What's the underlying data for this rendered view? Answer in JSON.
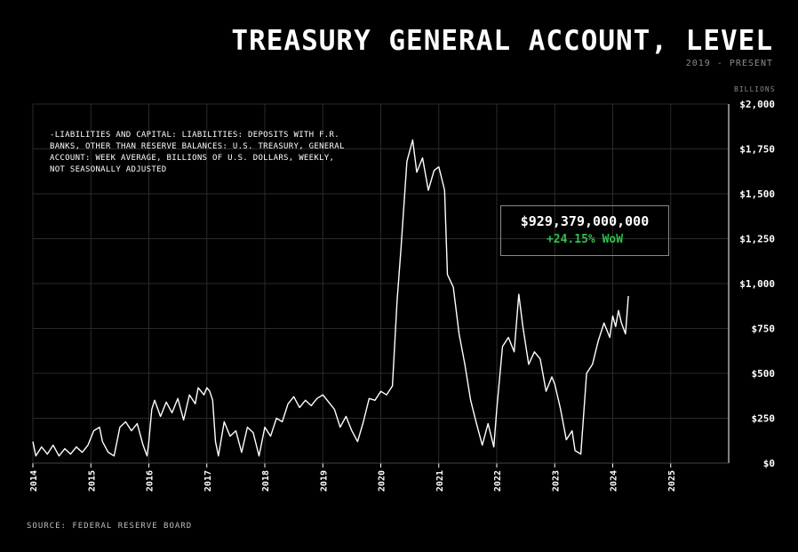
{
  "title": "TREASURY GENERAL ACCOUNT, LEVEL",
  "subtitle": "2019 - PRESENT",
  "unit_label": "BILLIONS",
  "series_description": "-LIABILITIES AND CAPITAL: LIABILITIES: DEPOSITS WITH F.R. BANKS, OTHER THAN RESERVE BALANCES: U.S. TREASURY, GENERAL ACCOUNT: WEEK AVERAGE, BILLIONS OF U.S. DOLLARS, WEEKLY, NOT SEASONALLY ADJUSTED",
  "callout": {
    "value": "$929,379,000,000",
    "change": "+24.15% WoW",
    "change_color": "#2fbf4f"
  },
  "source": "SOURCE: FEDERAL RESERVE BOARD",
  "colors": {
    "background": "#000000",
    "line": "#ffffff",
    "grid": "#2a2a2a",
    "muted": "#8a8a8a"
  },
  "chart_data": {
    "type": "line",
    "title": "TREASURY GENERAL ACCOUNT, LEVEL",
    "ylabel": "BILLIONS",
    "xlim": [
      2014.0,
      2026.0
    ],
    "ylim": [
      0,
      2000
    ],
    "grid": true,
    "legend": "none",
    "x_ticks": [
      2014,
      2015,
      2016,
      2017,
      2018,
      2019,
      2020,
      2021,
      2022,
      2023,
      2024,
      2025
    ],
    "x_tick_labels": [
      "2014",
      "2015",
      "2016",
      "2017",
      "2018",
      "2019",
      "2020",
      "2021",
      "2022",
      "2023",
      "2024",
      "2025"
    ],
    "y_ticks": [
      0,
      250,
      500,
      750,
      1000,
      1250,
      1500,
      1750,
      2000
    ],
    "y_tick_labels": [
      "$0",
      "$250",
      "$500",
      "$750",
      "$1,000",
      "$1,250",
      "$1,500",
      "$1,750",
      "$2,000"
    ],
    "series": [
      {
        "values": [
          [
            2014.0,
            120
          ],
          [
            2014.05,
            40
          ],
          [
            2014.15,
            90
          ],
          [
            2014.25,
            50
          ],
          [
            2014.35,
            100
          ],
          [
            2014.45,
            40
          ],
          [
            2014.55,
            80
          ],
          [
            2014.65,
            50
          ],
          [
            2014.75,
            90
          ],
          [
            2014.85,
            60
          ],
          [
            2014.95,
            100
          ],
          [
            2015.05,
            180
          ],
          [
            2015.15,
            200
          ],
          [
            2015.2,
            120
          ],
          [
            2015.3,
            60
          ],
          [
            2015.4,
            40
          ],
          [
            2015.5,
            200
          ],
          [
            2015.6,
            230
          ],
          [
            2015.7,
            180
          ],
          [
            2015.8,
            220
          ],
          [
            2015.9,
            100
          ],
          [
            2015.97,
            40
          ],
          [
            2016.0,
            120
          ],
          [
            2016.05,
            300
          ],
          [
            2016.1,
            350
          ],
          [
            2016.2,
            260
          ],
          [
            2016.3,
            340
          ],
          [
            2016.4,
            280
          ],
          [
            2016.5,
            360
          ],
          [
            2016.6,
            240
          ],
          [
            2016.7,
            380
          ],
          [
            2016.8,
            330
          ],
          [
            2016.85,
            420
          ],
          [
            2016.95,
            380
          ],
          [
            2017.0,
            420
          ],
          [
            2017.05,
            400
          ],
          [
            2017.1,
            350
          ],
          [
            2017.15,
            120
          ],
          [
            2017.2,
            40
          ],
          [
            2017.3,
            230
          ],
          [
            2017.4,
            150
          ],
          [
            2017.5,
            180
          ],
          [
            2017.6,
            60
          ],
          [
            2017.7,
            200
          ],
          [
            2017.8,
            170
          ],
          [
            2017.9,
            40
          ],
          [
            2018.0,
            200
          ],
          [
            2018.1,
            150
          ],
          [
            2018.2,
            250
          ],
          [
            2018.3,
            230
          ],
          [
            2018.4,
            330
          ],
          [
            2018.5,
            370
          ],
          [
            2018.6,
            310
          ],
          [
            2018.7,
            350
          ],
          [
            2018.8,
            320
          ],
          [
            2018.9,
            360
          ],
          [
            2019.0,
            380
          ],
          [
            2019.1,
            340
          ],
          [
            2019.2,
            300
          ],
          [
            2019.3,
            200
          ],
          [
            2019.4,
            260
          ],
          [
            2019.5,
            180
          ],
          [
            2019.6,
            120
          ],
          [
            2019.7,
            230
          ],
          [
            2019.8,
            360
          ],
          [
            2019.9,
            350
          ],
          [
            2020.0,
            400
          ],
          [
            2020.1,
            380
          ],
          [
            2020.2,
            430
          ],
          [
            2020.28,
            900
          ],
          [
            2020.35,
            1200
          ],
          [
            2020.45,
            1680
          ],
          [
            2020.55,
            1800
          ],
          [
            2020.62,
            1620
          ],
          [
            2020.72,
            1700
          ],
          [
            2020.82,
            1520
          ],
          [
            2020.92,
            1630
          ],
          [
            2021.0,
            1650
          ],
          [
            2021.1,
            1520
          ],
          [
            2021.15,
            1050
          ],
          [
            2021.25,
            980
          ],
          [
            2021.35,
            720
          ],
          [
            2021.45,
            550
          ],
          [
            2021.55,
            350
          ],
          [
            2021.65,
            220
          ],
          [
            2021.75,
            100
          ],
          [
            2021.85,
            220
          ],
          [
            2021.95,
            90
          ],
          [
            2022.0,
            300
          ],
          [
            2022.1,
            650
          ],
          [
            2022.2,
            700
          ],
          [
            2022.3,
            620
          ],
          [
            2022.38,
            940
          ],
          [
            2022.45,
            760
          ],
          [
            2022.55,
            550
          ],
          [
            2022.65,
            620
          ],
          [
            2022.75,
            580
          ],
          [
            2022.85,
            400
          ],
          [
            2022.95,
            480
          ],
          [
            2023.0,
            440
          ],
          [
            2023.1,
            300
          ],
          [
            2023.2,
            130
          ],
          [
            2023.3,
            180
          ],
          [
            2023.35,
            70
          ],
          [
            2023.45,
            50
          ],
          [
            2023.55,
            500
          ],
          [
            2023.65,
            550
          ],
          [
            2023.75,
            680
          ],
          [
            2023.85,
            780
          ],
          [
            2023.95,
            700
          ],
          [
            2024.0,
            820
          ],
          [
            2024.05,
            760
          ],
          [
            2024.1,
            850
          ],
          [
            2024.15,
            780
          ],
          [
            2024.22,
            720
          ],
          [
            2024.27,
            930
          ]
        ]
      }
    ]
  }
}
